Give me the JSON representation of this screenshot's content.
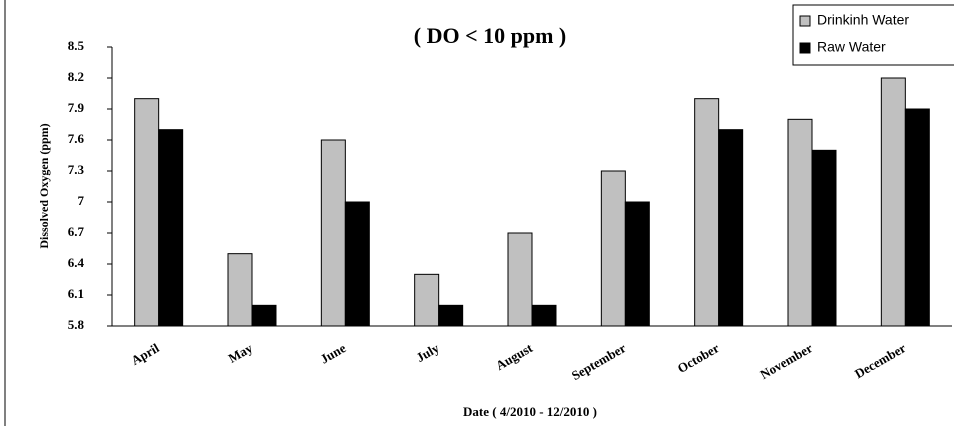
{
  "chart_data": {
    "type": "bar",
    "title": "( DO < 10 ppm )",
    "x_label": "Date ( 4/2010 - 12/2010 )",
    "y_label": "Dissolved Oxygen (ppm)",
    "categories": [
      "April",
      "May",
      "June",
      "July",
      "August",
      "September",
      "October",
      "November",
      "December"
    ],
    "series": [
      {
        "name": "Drinkinh Water",
        "color": "#c0c0c0",
        "values": [
          8.0,
          6.5,
          7.6,
          6.3,
          6.7,
          7.3,
          8.0,
          7.8,
          8.2
        ]
      },
      {
        "name": "Raw Water",
        "color": "#000000",
        "values": [
          7.7,
          6.0,
          7.0,
          6.0,
          6.0,
          7.0,
          7.7,
          7.5,
          7.9
        ]
      }
    ],
    "ylim": [
      5.8,
      8.5
    ],
    "yticks": [
      5.8,
      6.1,
      6.4,
      6.7,
      7,
      7.3,
      7.6,
      7.9,
      8.2,
      8.5
    ],
    "grid": false,
    "legend": "top-right"
  }
}
